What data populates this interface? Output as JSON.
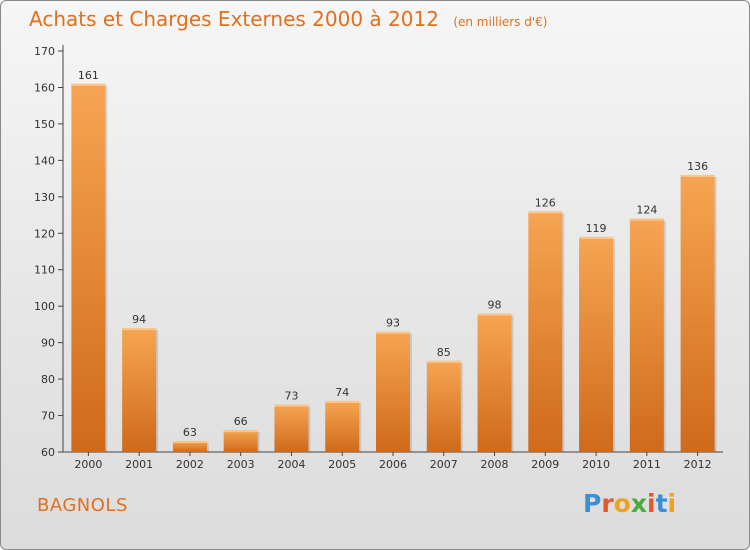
{
  "header": {
    "title": "Achats et Charges Externes 2000 à 2012",
    "subtitle": "(en milliers d'€)"
  },
  "footer": {
    "city": "BAGNOLS",
    "logo_letters": [
      {
        "char": "P",
        "color": "#3a8fd6"
      },
      {
        "char": "r",
        "color": "#e35a2a"
      },
      {
        "char": "o",
        "color": "#f0a21d"
      },
      {
        "char": "x",
        "color": "#4aaa3c"
      },
      {
        "char": "i",
        "color": "#e35a2a"
      },
      {
        "char": "t",
        "color": "#3a8fd6"
      },
      {
        "char": "i",
        "color": "#f0a21d"
      }
    ]
  },
  "colors": {
    "accent": "#e0701e",
    "bar_top": "#f6a552",
    "bar_bottom": "#cf6a1a"
  },
  "chart_data": {
    "type": "bar",
    "categories": [
      "2000",
      "2001",
      "2002",
      "2003",
      "2004",
      "2005",
      "2006",
      "2007",
      "2008",
      "2009",
      "2010",
      "2011",
      "2012"
    ],
    "values": [
      161,
      94,
      63,
      66,
      73,
      74,
      93,
      85,
      98,
      126,
      119,
      124,
      136
    ],
    "ylim": [
      60,
      170
    ],
    "yticks": [
      60,
      70,
      80,
      90,
      100,
      110,
      120,
      130,
      140,
      150,
      160,
      170
    ],
    "grid": false
  }
}
